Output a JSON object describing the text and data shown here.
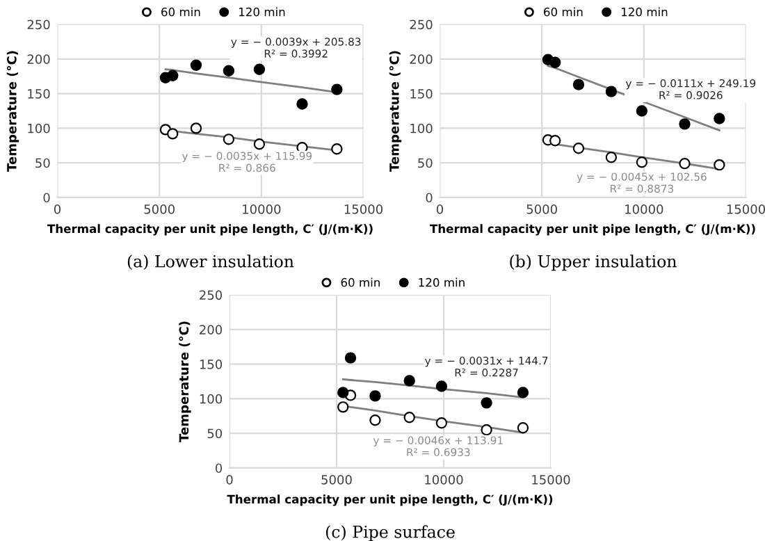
{
  "chart_data": [
    {
      "type": "scatter",
      "title": "(a) Lower insulation",
      "xlabel": "Thermal capacity per unit pipe length, C′ (J/(m·K))",
      "ylabel": "Temperature (°C)",
      "x": [
        5300,
        5650,
        6800,
        8400,
        9900,
        12000,
        13700
      ],
      "xlim": [
        0,
        15000
      ],
      "xticks": [
        0,
        5000,
        10000,
        15000
      ],
      "ylim": [
        0,
        250
      ],
      "yticks": [
        0,
        50,
        100,
        150,
        200,
        250
      ],
      "grid": true,
      "legend": "top",
      "series": [
        {
          "name": "60 min",
          "color": "#ffffff",
          "marker": "circle",
          "values": [
            98,
            92,
            100,
            84,
            77,
            72,
            70
          ]
        },
        {
          "name": "120 min",
          "color": "#000000",
          "marker": "circle",
          "values": [
            173,
            176,
            191,
            183,
            185,
            135,
            156
          ]
        },
        {
          "type": "line",
          "color": "#7f7f7f",
          "values": [
            185,
            184,
            179,
            173,
            167,
            159,
            152
          ]
        },
        {
          "type": "line",
          "color": "#7f7f7f",
          "values": [
            97,
            96,
            92,
            87,
            81,
            74,
            68
          ]
        }
      ],
      "annotations": [
        "y = − 0.0039x + 205.83\nR² = 0.3992",
        "y = − 0.0035x + 115.99\nR² = 0.866"
      ]
    },
    {
      "type": "scatter",
      "title": "(b) Upper insulation",
      "xlabel": "Thermal capacity per unit pipe length, C′ (J/(m·K))",
      "ylabel": "Temperature (°C)",
      "x": [
        5300,
        5650,
        6800,
        8400,
        9900,
        12000,
        13700
      ],
      "xlim": [
        0,
        15000
      ],
      "xticks": [
        0,
        5000,
        10000,
        15000
      ],
      "ylim": [
        0,
        250
      ],
      "yticks": [
        0,
        50,
        100,
        150,
        200,
        250
      ],
      "grid": true,
      "legend": "top",
      "series": [
        {
          "name": "60 min",
          "color": "#ffffff",
          "marker": "circle",
          "values": [
            83,
            82,
            71,
            58,
            51,
            49,
            47
          ]
        },
        {
          "name": "120 min",
          "color": "#000000",
          "marker": "circle",
          "values": [
            199,
            195,
            163,
            153,
            125,
            106,
            114
          ]
        },
        {
          "type": "line",
          "color": "#7f7f7f",
          "values": [
            190,
            187,
            174,
            156,
            139,
            116,
            97
          ]
        },
        {
          "type": "line",
          "color": "#7f7f7f",
          "values": [
            79,
            77,
            72,
            65,
            58,
            49,
            41
          ]
        }
      ],
      "annotations": [
        "y = − 0.0111x + 249.19\nR² = 0.9026",
        "y = − 0.0045x + 102.56\nR² = 0.8873"
      ]
    },
    {
      "type": "scatter",
      "title": "(c) Pipe surface",
      "xlabel": "Thermal capacity per unit pipe length, C′ (J/(m·K))",
      "ylabel": "Temperature (°C)",
      "x": [
        5300,
        5650,
        6800,
        8400,
        9900,
        12000,
        13700
      ],
      "xlim": [
        0,
        15000
      ],
      "xticks": [
        0,
        5000,
        10000,
        15000
      ],
      "ylim": [
        0,
        250
      ],
      "yticks": [
        0,
        50,
        100,
        150,
        200,
        250
      ],
      "grid": true,
      "legend": "top",
      "series": [
        {
          "name": "60 min",
          "color": "#ffffff",
          "marker": "circle",
          "values": [
            88,
            105,
            69,
            73,
            65,
            55,
            58
          ]
        },
        {
          "name": "120 min",
          "color": "#000000",
          "marker": "circle",
          "values": [
            109,
            159,
            104,
            126,
            118,
            94,
            109
          ]
        },
        {
          "type": "line",
          "color": "#7f7f7f",
          "values": [
            128,
            127,
            124,
            119,
            114,
            108,
            102
          ]
        },
        {
          "type": "line",
          "color": "#7f7f7f",
          "values": [
            90,
            88,
            83,
            75,
            68,
            59,
            51
          ]
        }
      ],
      "annotations": [
        "y = − 0.0031x + 144.7\nR² = 0.2287",
        "y = − 0.0046x + 113.91\nR² = 0.6933"
      ]
    }
  ]
}
